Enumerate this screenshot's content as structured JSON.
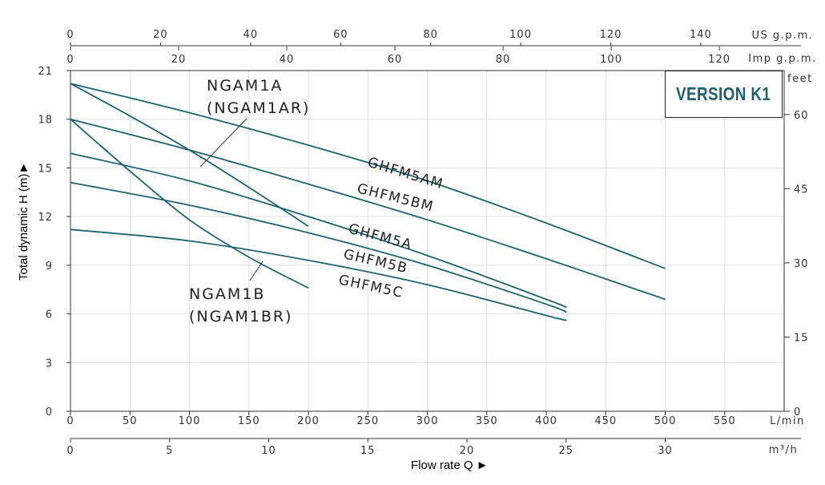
{
  "badge": "VERSION K1",
  "chart_data": {
    "type": "line",
    "title": "",
    "xlabel": "Flow rate Q ►",
    "ylabel": "Total dynamic H (m)►",
    "xlim": [
      0,
      600
    ],
    "ylim": [
      0,
      21
    ],
    "x_unit": "L/min",
    "y_ticks": [
      0,
      3,
      6,
      9,
      12,
      15,
      18,
      21
    ],
    "x_ticks": [
      0,
      50,
      100,
      150,
      200,
      250,
      300,
      350,
      400,
      450,
      500,
      550
    ],
    "secondary_axes": {
      "us_gpm": {
        "unit": "US g.p.m.",
        "ticks": [
          0,
          20,
          40,
          60,
          80,
          100,
          120,
          140
        ]
      },
      "imp_gpm": {
        "unit": "Imp g.p.m.",
        "ticks": [
          0,
          20,
          40,
          60,
          80,
          100,
          120
        ]
      },
      "m3h": {
        "unit": "m³/h",
        "ticks": [
          0,
          5,
          10,
          15,
          20,
          25,
          30
        ]
      },
      "feet": {
        "unit": "feet",
        "ticks": [
          0,
          15,
          30,
          45,
          60
        ]
      }
    },
    "grid": true,
    "series": [
      {
        "name": "GHFM5AM",
        "x": [
          0,
          100,
          200,
          300,
          400,
          500
        ],
        "y": [
          20.2,
          18.4,
          16.4,
          14.2,
          11.6,
          8.8
        ]
      },
      {
        "name": "GHFM5BM",
        "x": [
          0,
          100,
          200,
          300,
          400,
          500
        ],
        "y": [
          18.0,
          16.1,
          14.0,
          11.8,
          9.4,
          6.9
        ]
      },
      {
        "name": "GHFM5A",
        "x": [
          0,
          100,
          200,
          300,
          400,
          417
        ],
        "y": [
          15.9,
          14.2,
          12.0,
          9.6,
          6.9,
          6.4
        ]
      },
      {
        "name": "GHFM5B",
        "x": [
          0,
          100,
          200,
          300,
          400,
          417
        ],
        "y": [
          14.1,
          12.7,
          11.0,
          9.0,
          6.6,
          6.1
        ]
      },
      {
        "name": "GHFM5C",
        "x": [
          0,
          100,
          200,
          300,
          400,
          417
        ],
        "y": [
          11.2,
          10.5,
          9.3,
          7.8,
          5.9,
          5.6
        ]
      },
      {
        "name": "NGAM1A (NGAM1AR)",
        "x": [
          0,
          50,
          100,
          150,
          200
        ],
        "y": [
          20.2,
          18.2,
          16.1,
          13.8,
          11.4
        ]
      },
      {
        "name": "NGAM1B (NGAM1BR)",
        "x": [
          0,
          50,
          100,
          150,
          200
        ],
        "y": [
          18.0,
          14.8,
          11.8,
          9.5,
          7.6
        ]
      }
    ],
    "labels": {
      "GHFM5AM": "GHFM5AM",
      "GHFM5BM": "GHFM5BM",
      "GHFM5A": "GHFM5A",
      "GHFM5B": "GHFM5B",
      "GHFM5C": "GHFM5C",
      "NGAM1A_line1": "NGAM1A",
      "NGAM1A_line2": "(NGAM1AR)",
      "NGAM1B_line1": "NGAM1B",
      "NGAM1B_line2": "(NGAM1BR)"
    }
  }
}
